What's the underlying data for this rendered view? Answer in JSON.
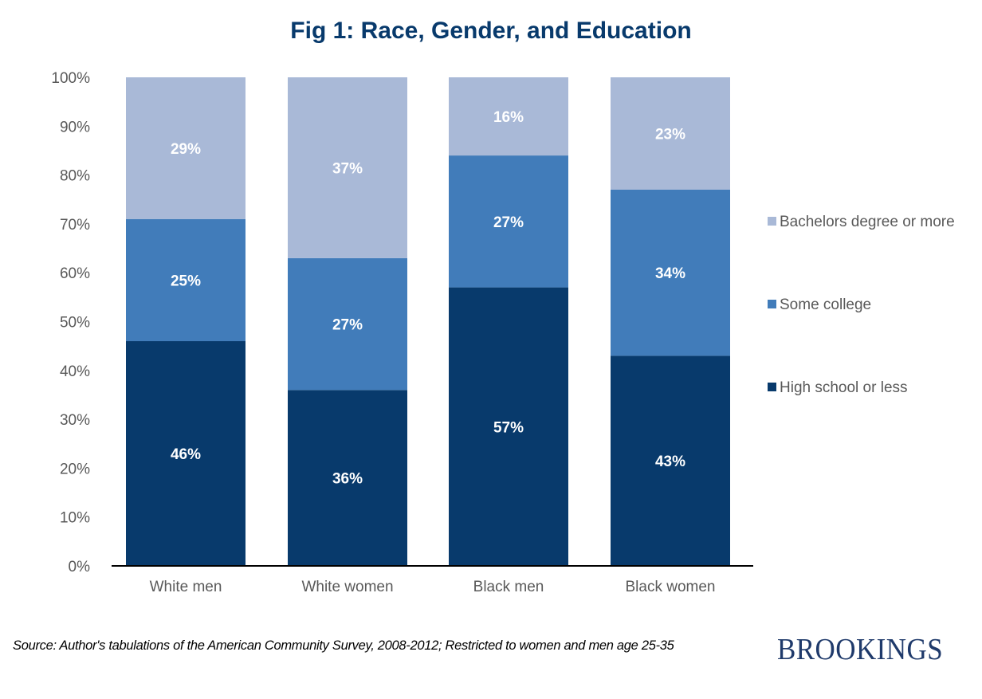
{
  "chart_data": {
    "type": "bar",
    "stacked": true,
    "title": "Fig 1: Race, Gender, and Education",
    "xlabel": "",
    "ylabel": "",
    "categories": [
      "White men",
      "White women",
      "Black men",
      "Black women"
    ],
    "series": [
      {
        "name": "High school or less",
        "color": "#083a6c",
        "values": [
          46,
          36,
          57,
          43
        ],
        "labels": [
          "46%",
          "36%",
          "57%",
          "43%"
        ]
      },
      {
        "name": "Some college",
        "color": "#417cba",
        "values": [
          25,
          27,
          27,
          34
        ],
        "labels": [
          "25%",
          "27%",
          "27%",
          "34%"
        ]
      },
      {
        "name": "Bachelors degree or more",
        "color": "#a9b9d7",
        "values": [
          29,
          37,
          16,
          23
        ],
        "labels": [
          "29%",
          "37%",
          "16%",
          "23%"
        ]
      }
    ],
    "ylim": [
      0,
      100
    ],
    "yticks": [
      0,
      10,
      20,
      30,
      40,
      50,
      60,
      70,
      80,
      90,
      100
    ],
    "ytick_labels": [
      "0%",
      "10%",
      "20%",
      "30%",
      "40%",
      "50%",
      "60%",
      "70%",
      "80%",
      "90%",
      "100%"
    ],
    "grid": false,
    "legend": {
      "position": "right",
      "entries": [
        {
          "label": "Bachelors degree or more",
          "color": "#a9b9d7"
        },
        {
          "label": "Some college",
          "color": "#417cba"
        },
        {
          "label": "High school or less",
          "color": "#083a6c"
        }
      ]
    }
  },
  "source_note": "Source: Author's tabulations of the American Community Survey, 2008-2012; Restricted to women and men age 25-35",
  "brand": "BROOKINGS"
}
